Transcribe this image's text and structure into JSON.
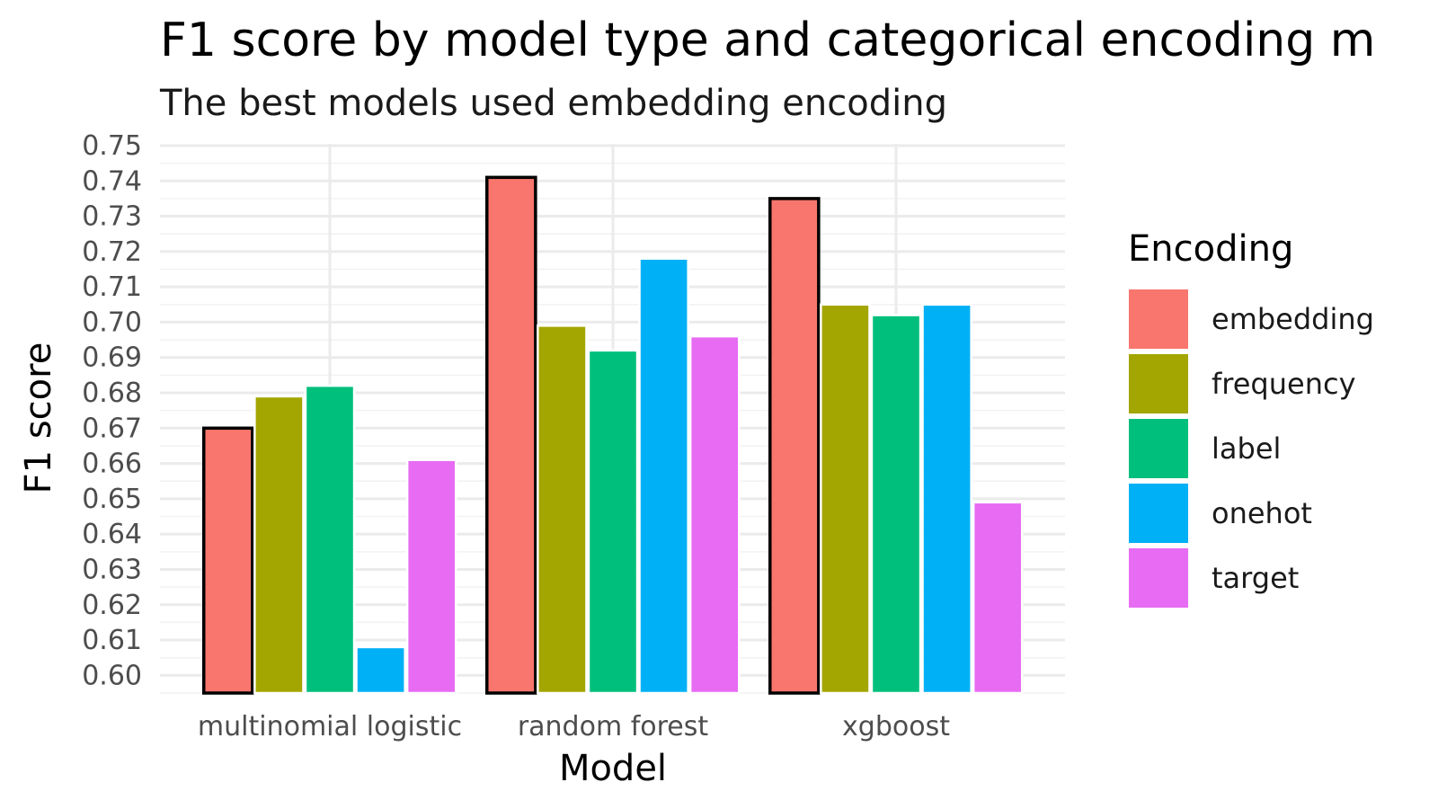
{
  "chart_data": {
    "type": "bar",
    "title": "F1 score by model type and categorical encoding m",
    "subtitle": "The best models used embedding encoding",
    "xlabel": "Model",
    "ylabel": "F1 score",
    "categories": [
      "multinomial logistic",
      "random forest",
      "xgboost"
    ],
    "ylim": [
      0.595,
      0.7505
    ],
    "y_ticks": [
      "0.60",
      "0.61",
      "0.62",
      "0.63",
      "0.64",
      "0.65",
      "0.66",
      "0.67",
      "0.68",
      "0.69",
      "0.70",
      "0.71",
      "0.72",
      "0.73",
      "0.74",
      "0.75"
    ],
    "grid": true,
    "legend": {
      "title": "Encoding",
      "position": "right"
    },
    "highlight_series": "embedding",
    "series": [
      {
        "name": "embedding",
        "color": "#F8766D",
        "values": [
          0.67,
          0.741,
          0.735
        ]
      },
      {
        "name": "frequency",
        "color": "#A3A500",
        "values": [
          0.679,
          0.699,
          0.705
        ]
      },
      {
        "name": "label",
        "color": "#00BF7D",
        "values": [
          0.682,
          0.692,
          0.702
        ]
      },
      {
        "name": "onehot",
        "color": "#00B0F6",
        "values": [
          0.608,
          0.718,
          0.705
        ]
      },
      {
        "name": "target",
        "color": "#E76BF3",
        "values": [
          0.661,
          0.696,
          0.649
        ]
      }
    ]
  }
}
